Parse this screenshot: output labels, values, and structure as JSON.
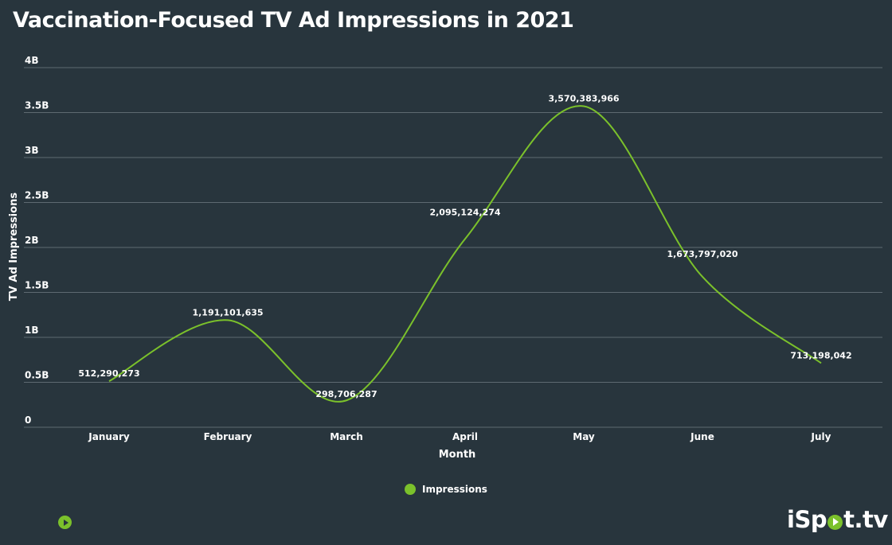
{
  "colors": {
    "background": "#28353d",
    "series": "#7bc12b",
    "grid": "#5e6a71"
  },
  "chart_data": {
    "type": "line",
    "title": "Vaccination-Focused TV Ad Impressions in 2021",
    "xlabel": "Month",
    "ylabel": "TV Ad Impressions",
    "ylim": [
      0,
      4000000000
    ],
    "yticks": [
      0,
      500000000,
      1000000000,
      1500000000,
      2000000000,
      2500000000,
      3000000000,
      3500000000,
      4000000000
    ],
    "ytick_labels": [
      "0",
      "0.5B",
      "1B",
      "1.5B",
      "2B",
      "2.5B",
      "3B",
      "3.5B",
      "4B"
    ],
    "categories": [
      "January",
      "February",
      "March",
      "April",
      "May",
      "June",
      "July"
    ],
    "series": [
      {
        "name": "Impressions",
        "values": [
          512290273,
          1191101635,
          298706287,
          2095124274,
          3570383966,
          1673797020,
          713198042
        ],
        "labels": [
          "512,290,273",
          "1,191,101,635",
          "298,706,287",
          "2,095,124,274",
          "3,570,383,966",
          "1,673,797,020",
          "713,198,042"
        ]
      }
    ],
    "legend": {
      "position": "bottom",
      "label": "Impressions"
    },
    "grid": true
  },
  "branding": {
    "logo_before": "iSp",
    "logo_after": "t.tv"
  }
}
